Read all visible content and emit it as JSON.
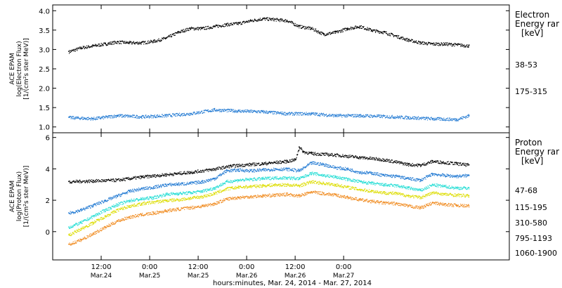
{
  "chart_data": [
    {
      "type": "scatter",
      "panel": "electron",
      "ylabel_lines": [
        "ACE EPAM",
        "log(Electron Flux)",
        "[1/(cm²s ster MeV)]"
      ],
      "ylim": [
        0.85,
        4.15
      ],
      "yticks": [
        1.0,
        1.5,
        2.0,
        2.5,
        3.0,
        3.5,
        4.0
      ],
      "ytick_labels": [
        "1.0",
        "1.5",
        "2.0",
        "2.5",
        "3.0",
        "3.5",
        "4.0"
      ],
      "legend_title": [
        "Electron",
        "Energy rar",
        "[keV]"
      ],
      "series": [
        {
          "name": "38-53",
          "color": "#000000",
          "t": [
            0,
            3,
            6,
            9,
            12,
            15,
            18,
            21,
            24,
            27,
            30,
            33,
            36,
            39,
            42,
            45,
            48,
            51,
            54,
            57,
            60,
            63,
            66,
            69,
            72,
            75,
            78,
            81,
            84,
            87,
            90,
            93,
            96,
            99
          ],
          "values": [
            2.95,
            3.05,
            3.1,
            3.15,
            3.2,
            3.18,
            3.18,
            3.22,
            3.3,
            3.45,
            3.55,
            3.55,
            3.6,
            3.65,
            3.68,
            3.75,
            3.8,
            3.78,
            3.75,
            3.6,
            3.55,
            3.4,
            3.45,
            3.55,
            3.6,
            3.5,
            3.45,
            3.35,
            3.25,
            3.18,
            3.15,
            3.15,
            3.13,
            3.1
          ]
        },
        {
          "name": "175-315",
          "color": "#1f78d2",
          "t": [
            0,
            6,
            12,
            18,
            24,
            30,
            36,
            42,
            48,
            54,
            60,
            66,
            72,
            78,
            84,
            90,
            96,
            99
          ],
          "values": [
            1.25,
            1.22,
            1.3,
            1.27,
            1.3,
            1.35,
            1.45,
            1.42,
            1.4,
            1.35,
            1.35,
            1.3,
            1.3,
            1.28,
            1.25,
            1.22,
            1.2,
            1.3
          ]
        }
      ]
    },
    {
      "type": "scatter",
      "panel": "proton",
      "ylabel_lines": [
        "ACE EPAM",
        "log(Proton Flux)",
        "[1/(cm²s ster MeV)]"
      ],
      "ylim": [
        -1.8,
        6.3
      ],
      "yticks": [
        0,
        2,
        4,
        6
      ],
      "ytick_labels": [
        "0",
        "2",
        "4",
        "6"
      ],
      "legend_title": [
        "Proton",
        "Energy rar",
        "[keV]"
      ],
      "series": [
        {
          "name": "47-68",
          "color": "#000000",
          "t": [
            0,
            6,
            12,
            18,
            24,
            30,
            36,
            40,
            45,
            48,
            54,
            56,
            57,
            58,
            60,
            66,
            72,
            78,
            84,
            87,
            90,
            96,
            99
          ],
          "values": [
            3.2,
            3.25,
            3.3,
            3.5,
            3.65,
            3.8,
            4.0,
            4.2,
            4.3,
            4.35,
            4.5,
            4.6,
            5.4,
            5.1,
            5.0,
            4.9,
            4.75,
            4.6,
            4.3,
            4.25,
            4.5,
            4.35,
            4.25
          ]
        },
        {
          "name": "115-195",
          "color": "#1f78d2",
          "t": [
            0,
            3,
            6,
            9,
            12,
            15,
            18,
            21,
            24,
            27,
            30,
            33,
            36,
            39,
            42,
            45,
            48,
            51,
            54,
            57,
            60,
            63,
            66,
            69,
            72,
            75,
            78,
            81,
            84,
            87,
            90,
            93,
            96,
            99
          ],
          "values": [
            1.2,
            1.4,
            1.7,
            2.0,
            2.3,
            2.6,
            2.75,
            2.85,
            3.0,
            3.05,
            3.1,
            3.2,
            3.4,
            3.9,
            3.95,
            3.9,
            3.95,
            4.0,
            4.0,
            3.9,
            4.4,
            4.3,
            4.1,
            4.0,
            3.8,
            3.75,
            3.6,
            3.55,
            3.4,
            3.3,
            3.7,
            3.6,
            3.55,
            3.6
          ]
        },
        {
          "name": "310-580",
          "color": "#22ddd4",
          "t": [
            0,
            3,
            6,
            9,
            12,
            15,
            18,
            21,
            24,
            27,
            30,
            33,
            36,
            39,
            42,
            45,
            48,
            51,
            54,
            57,
            60,
            63,
            66,
            69,
            72,
            75,
            78,
            81,
            84,
            87,
            90,
            93,
            96,
            99
          ],
          "values": [
            0.3,
            0.6,
            1.0,
            1.4,
            1.75,
            2.0,
            2.1,
            2.2,
            2.4,
            2.45,
            2.5,
            2.6,
            2.8,
            3.2,
            3.3,
            3.35,
            3.4,
            3.45,
            3.45,
            3.4,
            3.75,
            3.6,
            3.5,
            3.35,
            3.2,
            3.1,
            3.0,
            2.95,
            2.8,
            2.65,
            3.0,
            2.9,
            2.8,
            2.8
          ]
        },
        {
          "name": "795-1193",
          "color": "#dddd00",
          "t": [
            0,
            3,
            6,
            9,
            12,
            15,
            18,
            21,
            24,
            27,
            30,
            33,
            36,
            39,
            42,
            45,
            48,
            51,
            54,
            57,
            60,
            63,
            66,
            69,
            72,
            75,
            78,
            81,
            84,
            87,
            90,
            93,
            96,
            99
          ],
          "values": [
            -0.2,
            0.2,
            0.6,
            1.0,
            1.4,
            1.65,
            1.8,
            1.9,
            2.0,
            2.05,
            2.15,
            2.25,
            2.45,
            2.75,
            2.85,
            2.9,
            2.95,
            3.0,
            3.0,
            2.95,
            3.2,
            3.1,
            3.0,
            2.85,
            2.7,
            2.6,
            2.5,
            2.45,
            2.3,
            2.2,
            2.5,
            2.4,
            2.35,
            2.3
          ]
        },
        {
          "name": "1060-1900",
          "color": "#f08a1e",
          "t": [
            0,
            3,
            6,
            9,
            12,
            15,
            18,
            21,
            24,
            27,
            30,
            33,
            36,
            39,
            42,
            45,
            48,
            51,
            54,
            57,
            60,
            63,
            66,
            69,
            72,
            75,
            78,
            81,
            84,
            87,
            90,
            93,
            96,
            99
          ],
          "values": [
            -0.8,
            -0.5,
            -0.1,
            0.3,
            0.7,
            0.95,
            1.1,
            1.2,
            1.35,
            1.45,
            1.55,
            1.65,
            1.8,
            2.1,
            2.2,
            2.25,
            2.3,
            2.35,
            2.4,
            2.3,
            2.55,
            2.45,
            2.35,
            2.2,
            2.05,
            1.95,
            1.85,
            1.8,
            1.65,
            1.55,
            1.85,
            1.75,
            1.7,
            1.65
          ]
        }
      ]
    }
  ],
  "x_axis": {
    "xlim": [
      -4,
      109
    ],
    "ticks": [
      {
        "t": 8,
        "time": "12:00",
        "date": "Mar.24"
      },
      {
        "t": 20,
        "time": "0:00",
        "date": "Mar.25"
      },
      {
        "t": 32,
        "time": "12:00",
        "date": "Mar.25"
      },
      {
        "t": 44,
        "time": "0:00",
        "date": "Mar.26"
      },
      {
        "t": 56,
        "time": "12:00",
        "date": "Mar.26"
      },
      {
        "t": 68,
        "time": "0:00",
        "date": "Mar.27"
      }
    ],
    "label": "hours:minutes, Mar. 24, 2014 - Mar. 27, 2014"
  }
}
